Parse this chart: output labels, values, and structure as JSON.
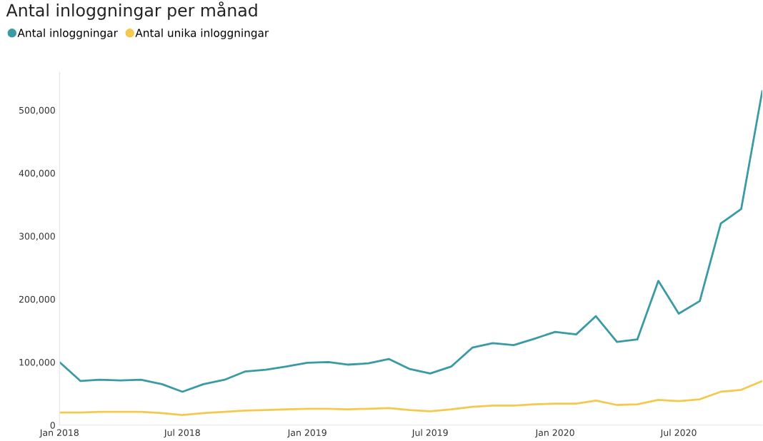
{
  "chart_data": {
    "type": "line",
    "title": "Antal inloggningar per månad",
    "x": [
      "2018-01",
      "2018-02",
      "2018-03",
      "2018-04",
      "2018-05",
      "2018-06",
      "2018-07",
      "2018-08",
      "2018-09",
      "2018-10",
      "2018-11",
      "2018-12",
      "2019-01",
      "2019-02",
      "2019-03",
      "2019-04",
      "2019-05",
      "2019-06",
      "2019-07",
      "2019-08",
      "2019-09",
      "2019-10",
      "2019-11",
      "2019-12",
      "2020-01",
      "2020-02",
      "2020-03",
      "2020-04",
      "2020-05",
      "2020-06",
      "2020-07",
      "2020-08",
      "2020-09",
      "2020-10",
      "2020-11"
    ],
    "series": [
      {
        "name": "Antal inloggningar",
        "color": "#3a9aa5",
        "values": [
          100000,
          70000,
          72000,
          71000,
          72000,
          65000,
          53000,
          65000,
          72000,
          85000,
          88000,
          93000,
          99000,
          100000,
          96000,
          98000,
          105000,
          89000,
          82000,
          93000,
          123000,
          130000,
          127000,
          137000,
          148000,
          144000,
          173000,
          132000,
          136000,
          229000,
          177000,
          197000,
          320000,
          343000,
          530000
        ]
      },
      {
        "name": "Antal unika inloggningar",
        "color": "#f5c94e",
        "values": [
          20000,
          20000,
          21000,
          21000,
          21000,
          19000,
          16000,
          19000,
          21000,
          23000,
          24000,
          25000,
          26000,
          26000,
          25000,
          26000,
          27000,
          24000,
          22000,
          25000,
          29000,
          31000,
          31000,
          33000,
          34000,
          34000,
          39000,
          32000,
          33000,
          40000,
          38000,
          41000,
          53000,
          56000,
          70000
        ]
      }
    ],
    "xticks": [
      {
        "value": "2018-01",
        "label": "Jan 2018"
      },
      {
        "value": "2018-07",
        "label": "Jul 2018"
      },
      {
        "value": "2019-01",
        "label": "Jan 2019"
      },
      {
        "value": "2019-07",
        "label": "Jul 2019"
      },
      {
        "value": "2020-01",
        "label": "Jan 2020"
      },
      {
        "value": "2020-07",
        "label": "Jul 2020"
      }
    ],
    "xlim": [
      "2018-01",
      "2020-11"
    ],
    "ylim": [
      0,
      560000
    ],
    "yticks": [
      0,
      {
        "value": 100000,
        "label": "100,000"
      },
      {
        "value": 200000,
        "label": "200,000"
      },
      {
        "value": 300000,
        "label": "300,000"
      },
      {
        "value": 400000,
        "label": "400,000"
      },
      {
        "value": 500000,
        "label": "500,000"
      }
    ],
    "grid": false,
    "legend": "top left",
    "marker": "none",
    "line_style": "solid"
  }
}
